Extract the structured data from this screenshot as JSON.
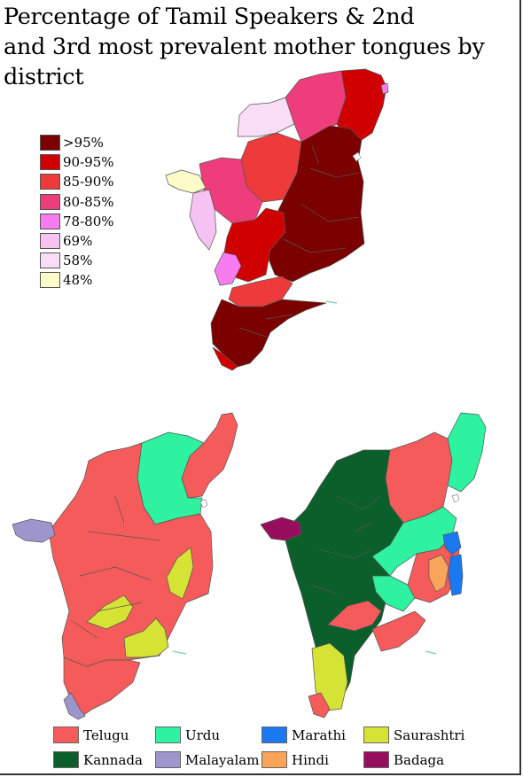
{
  "title_line1": "Percentage of Tamil Speakers & 2nd",
  "title_line2": "and 3rd most prevalent mother tongues by district",
  "tamil_legend": [
    {
      "label": ">95%",
      "color": "#7b0000"
    },
    {
      "label": "90-95%",
      "color": "#d10000"
    },
    {
      "label": "85-90%",
      "color": "#ee3a3a"
    },
    {
      "label": "80-85%",
      "color": "#ee3d7a"
    },
    {
      "label": "78-80%",
      "color": "#f77cf0"
    },
    {
      "label": "69%",
      "color": "#f6c2f2"
    },
    {
      "label": "58%",
      "color": "#f9ddf6"
    },
    {
      "label": "48%",
      "color": "#fdfcc8"
    }
  ],
  "language_legend": [
    {
      "label": "Telugu",
      "color": "#f65b5b"
    },
    {
      "label": "Urdu",
      "color": "#2ef2a0"
    },
    {
      "label": "Marathi",
      "color": "#1a78f0"
    },
    {
      "label": "Saurashtri",
      "color": "#d4e334"
    },
    {
      "label": "Kannada",
      "color": "#0b5f2a"
    },
    {
      "label": "Malayalam",
      "color": "#9e95cc"
    },
    {
      "label": "Hindi",
      "color": "#f9a35b"
    },
    {
      "label": "Badaga",
      "color": "#980e5e"
    }
  ]
}
